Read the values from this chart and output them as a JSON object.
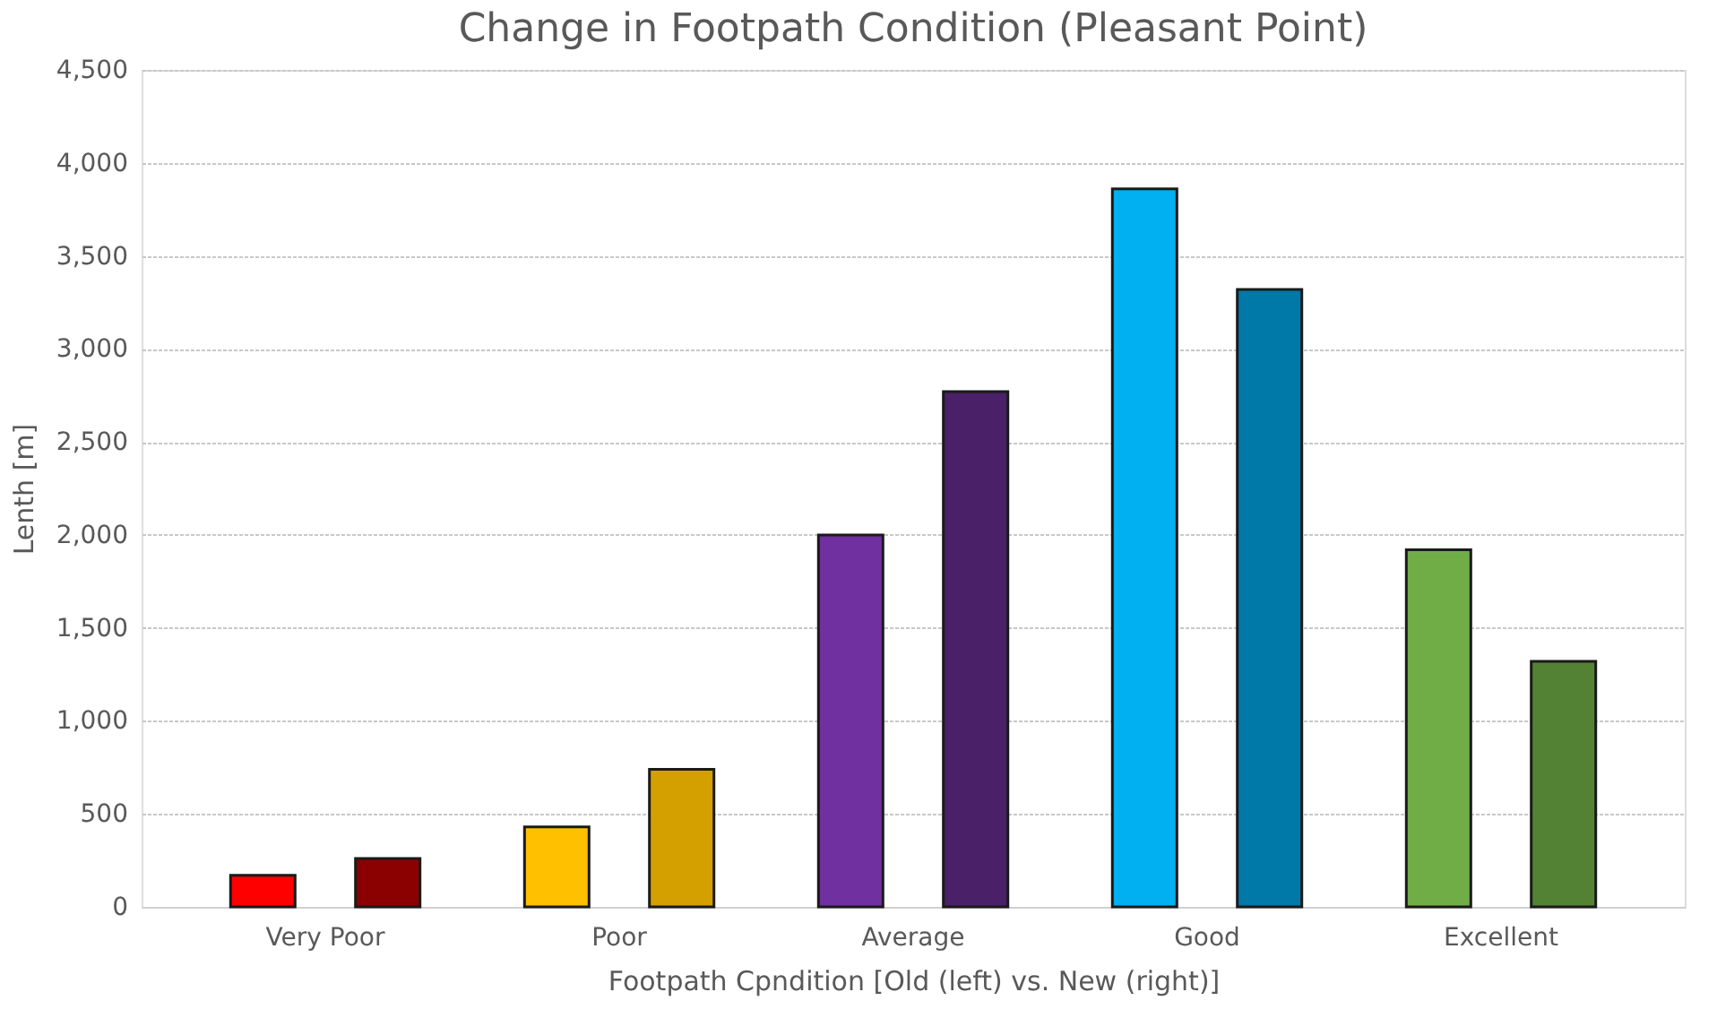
{
  "chart_data": {
    "type": "bar",
    "title": "Change in Footpath Condition (Pleasant Point)",
    "xlabel": "Footpath Cpndition [Old (left) vs. New  (right)]",
    "ylabel": "Lenth  [m]",
    "categories": [
      "Very Poor",
      "Poor",
      "Average",
      "Good",
      "Excellent"
    ],
    "series": [
      {
        "colors": [
          "#ff0000",
          "#ffc000",
          "#7030a0",
          "#00b0f0",
          "#70ad47"
        ],
        "values": [
          170,
          430,
          2000,
          3860,
          1920
        ]
      },
      {
        "colors": [
          "#8b0000",
          "#d4a000",
          "#4a2068",
          "#0078a8",
          "#548235"
        ],
        "values": [
          260,
          740,
          2770,
          3320,
          1320
        ]
      }
    ],
    "ylim": [
      0,
      4500
    ],
    "yticks": [
      {
        "value": 0,
        "label": "0"
      },
      {
        "value": 500,
        "label": "500"
      },
      {
        "value": 1000,
        "label": "1,000"
      },
      {
        "value": 1500,
        "label": "1,500"
      },
      {
        "value": 2000,
        "label": "2,000"
      },
      {
        "value": 2500,
        "label": "2,500"
      },
      {
        "value": 3000,
        "label": "3,000"
      },
      {
        "value": 3500,
        "label": "3,500"
      },
      {
        "value": 4000,
        "label": "4,000"
      },
      {
        "value": 4500,
        "label": "4,500"
      }
    ],
    "grid": "y"
  }
}
